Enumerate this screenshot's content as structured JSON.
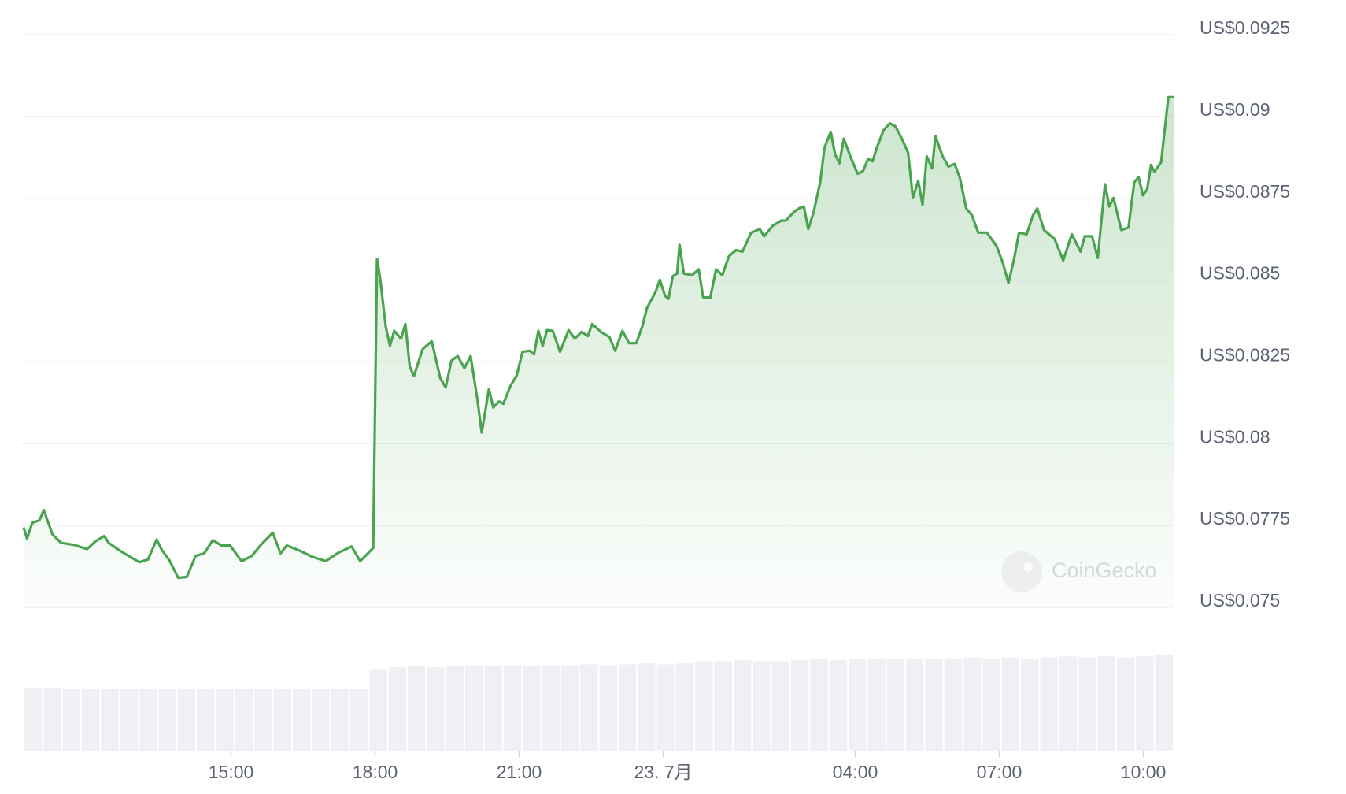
{
  "chart_data": {
    "type": "line",
    "watermark": "CoinGecko",
    "color": "#4aa34f",
    "grid": true,
    "xlim": [
      10.68,
      34.63
    ],
    "ylim": [
      0.075,
      0.0925
    ],
    "yticks": [
      {
        "value": 0.075,
        "label": "US$0.075"
      },
      {
        "value": 0.0775,
        "label": "US$0.0775"
      },
      {
        "value": 0.08,
        "label": "US$0.08"
      },
      {
        "value": 0.0825,
        "label": "US$0.0825"
      },
      {
        "value": 0.085,
        "label": "US$0.085"
      },
      {
        "value": 0.0875,
        "label": "US$0.0875"
      },
      {
        "value": 0.09,
        "label": "US$0.09"
      },
      {
        "value": 0.0925,
        "label": "US$0.0925"
      }
    ],
    "xticks": [
      {
        "value": 15,
        "label": "15:00"
      },
      {
        "value": 18,
        "label": "18:00"
      },
      {
        "value": 21,
        "label": "21:00"
      },
      {
        "value": 24,
        "label": "23. 7月"
      },
      {
        "value": 28,
        "label": "04:00"
      },
      {
        "value": 31,
        "label": "07:00"
      },
      {
        "value": 34,
        "label": "10:00"
      }
    ],
    "x": [
      10.68,
      10.75,
      10.86,
      11.01,
      11.1,
      11.28,
      11.46,
      11.73,
      12.0,
      12.18,
      12.36,
      12.45,
      12.72,
      13.09,
      13.27,
      13.45,
      13.56,
      13.72,
      13.9,
      14.08,
      14.26,
      14.44,
      14.62,
      14.8,
      14.98,
      15.22,
      15.43,
      15.62,
      15.87,
      16.03,
      16.16,
      16.43,
      16.7,
      16.97,
      17.24,
      17.51,
      17.69,
      17.96,
      18.04,
      18.11,
      18.22,
      18.31,
      18.4,
      18.54,
      18.63,
      18.72,
      18.81,
      18.99,
      19.18,
      19.36,
      19.47,
      19.59,
      19.72,
      19.86,
      19.99,
      20.13,
      20.22,
      20.37,
      20.46,
      20.58,
      20.67,
      20.82,
      20.95,
      21.07,
      21.22,
      21.31,
      21.4,
      21.49,
      21.58,
      21.7,
      21.85,
      22.03,
      22.16,
      22.3,
      22.43,
      22.52,
      22.7,
      22.88,
      23.0,
      23.15,
      23.29,
      23.44,
      23.57,
      23.66,
      23.84,
      23.93,
      24.04,
      24.11,
      24.2,
      24.29,
      24.34,
      24.43,
      24.6,
      24.74,
      24.83,
      24.98,
      25.1,
      25.23,
      25.37,
      25.52,
      25.65,
      25.83,
      26.01,
      26.1,
      26.28,
      26.46,
      26.55,
      26.73,
      26.82,
      26.93,
      27.02,
      27.13,
      27.27,
      27.36,
      27.49,
      27.58,
      27.67,
      27.76,
      27.91,
      28.05,
      28.16,
      28.27,
      28.36,
      28.45,
      28.59,
      28.72,
      28.84,
      28.99,
      29.1,
      29.2,
      29.31,
      29.4,
      29.49,
      29.6,
      29.67,
      29.82,
      29.94,
      30.07,
      30.18,
      30.31,
      30.43,
      30.56,
      30.74,
      30.94,
      31.07,
      31.19,
      31.3,
      31.41,
      31.57,
      31.7,
      31.79,
      31.93,
      32.15,
      32.33,
      32.51,
      32.69,
      32.78,
      32.93,
      33.05,
      33.2,
      33.29,
      33.38,
      33.54,
      33.69,
      33.81,
      33.9,
      33.99,
      34.08,
      34.16,
      34.23,
      34.37,
      34.52,
      34.63
    ],
    "values": [
      0.07744,
      0.0771,
      0.07758,
      0.07766,
      0.07797,
      0.07723,
      0.07697,
      0.07691,
      0.07678,
      0.07702,
      0.07718,
      0.07697,
      0.0767,
      0.07638,
      0.07646,
      0.07707,
      0.07675,
      0.07643,
      0.0759,
      0.07593,
      0.07657,
      0.07665,
      0.07705,
      0.07689,
      0.07689,
      0.07641,
      0.07657,
      0.07691,
      0.07728,
      0.07665,
      0.07689,
      0.07673,
      0.07654,
      0.07641,
      0.07667,
      0.07686,
      0.07641,
      0.07681,
      0.08565,
      0.08501,
      0.08358,
      0.08299,
      0.08345,
      0.08321,
      0.08366,
      0.08236,
      0.08207,
      0.08289,
      0.08313,
      0.08199,
      0.08172,
      0.08254,
      0.08268,
      0.08231,
      0.08268,
      0.08135,
      0.08034,
      0.08167,
      0.08111,
      0.08129,
      0.08122,
      0.08177,
      0.08209,
      0.08281,
      0.08284,
      0.08273,
      0.08345,
      0.08299,
      0.08347,
      0.08345,
      0.08281,
      0.08347,
      0.08321,
      0.08342,
      0.08329,
      0.08366,
      0.08342,
      0.08326,
      0.08284,
      0.08345,
      0.08307,
      0.08307,
      0.08361,
      0.08414,
      0.08464,
      0.08501,
      0.08451,
      0.08443,
      0.08512,
      0.0852,
      0.08608,
      0.0852,
      0.08515,
      0.08533,
      0.08448,
      0.08446,
      0.08533,
      0.08515,
      0.08573,
      0.08592,
      0.08587,
      0.08645,
      0.08656,
      0.08634,
      0.08666,
      0.08682,
      0.08682,
      0.08709,
      0.08719,
      0.08725,
      0.08656,
      0.08706,
      0.08799,
      0.08905,
      0.08953,
      0.08884,
      0.08857,
      0.08932,
      0.08873,
      0.08825,
      0.08833,
      0.08871,
      0.08863,
      0.08905,
      0.08958,
      0.08979,
      0.08969,
      0.08926,
      0.08889,
      0.08751,
      0.08804,
      0.0873,
      0.08878,
      0.08841,
      0.0894,
      0.08878,
      0.08847,
      0.08855,
      0.08812,
      0.08719,
      0.08698,
      0.08645,
      0.08645,
      0.08605,
      0.08554,
      0.08491,
      0.0856,
      0.08645,
      0.0864,
      0.08698,
      0.08719,
      0.08653,
      0.08626,
      0.0856,
      0.0864,
      0.08587,
      0.08634,
      0.08634,
      0.08568,
      0.08793,
      0.08725,
      0.08751,
      0.08653,
      0.08661,
      0.08799,
      0.08815,
      0.08759,
      0.08778,
      0.08852,
      0.08831,
      0.0886,
      0.09059,
      0.09059
    ],
    "volume": {
      "color": "#eef0f4",
      "ylim": [
        0,
        100
      ],
      "values": [
        63,
        63,
        62,
        62,
        62,
        62,
        62,
        62,
        62,
        62,
        62,
        62,
        62,
        62,
        62,
        62,
        62,
        62,
        82,
        84,
        85,
        84,
        85,
        86,
        85,
        86,
        85,
        86,
        86,
        87,
        86,
        87,
        88,
        87,
        88,
        90,
        90,
        91,
        90,
        90,
        91,
        92,
        91,
        92,
        93,
        92,
        93,
        92,
        93,
        94,
        93,
        94,
        93,
        94,
        95,
        94,
        95,
        94,
        95,
        96
      ]
    }
  }
}
